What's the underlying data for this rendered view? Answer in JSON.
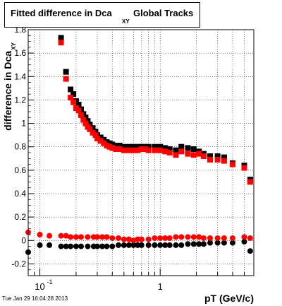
{
  "title": {
    "main": "Fitted difference in Dca",
    "subscript": "XY",
    "rest": "Global Tracks"
  },
  "timestamp": "Tue Jan 29 16:04:28 2013",
  "colors": {
    "series_black": "#000000",
    "series_red": "#ff0000",
    "grid": "#000000",
    "frame": "#000000"
  },
  "chart_data": {
    "type": "scatter",
    "xlabel": "pT (GeV/c)",
    "ylabel": "difference in Dca",
    "ylabel_subscript": "XY",
    "xscale": "log",
    "xlim": [
      0.08,
      6.0
    ],
    "ylim": [
      -0.3,
      1.8
    ],
    "grid": true,
    "y_ticks": [
      {
        "v": -0.2,
        "label": "-0.2"
      },
      {
        "v": 0,
        "label": "0"
      },
      {
        "v": 0.2,
        "label": "0.2"
      },
      {
        "v": 0.4,
        "label": "0.4"
      },
      {
        "v": 0.6,
        "label": "0.6"
      },
      {
        "v": 0.8,
        "label": "0.8"
      },
      {
        "v": 1.0,
        "label": "1"
      },
      {
        "v": 1.2,
        "label": "1.2"
      },
      {
        "v": 1.4,
        "label": "1.4"
      },
      {
        "v": 1.6,
        "label": "1.6"
      },
      {
        "v": 1.8,
        "label": "1.8"
      }
    ],
    "x_major_ticks": [
      {
        "v": 0.1,
        "label": "10",
        "exp": "-1"
      },
      {
        "v": 1.0,
        "label": "1",
        "exp": ""
      }
    ],
    "series": [
      {
        "marker": "square",
        "color": "#000000",
        "points": [
          [
            0.15,
            1.73
          ],
          [
            0.165,
            1.44
          ],
          [
            0.18,
            1.29
          ],
          [
            0.19,
            1.25
          ],
          [
            0.2,
            1.19
          ],
          [
            0.21,
            1.16
          ],
          [
            0.22,
            1.12
          ],
          [
            0.23,
            1.08
          ],
          [
            0.24,
            1.05
          ],
          [
            0.25,
            1.02
          ],
          [
            0.26,
            0.99
          ],
          [
            0.275,
            0.96
          ],
          [
            0.29,
            0.93
          ],
          [
            0.3,
            0.9
          ],
          [
            0.32,
            0.88
          ],
          [
            0.34,
            0.86
          ],
          [
            0.36,
            0.84
          ],
          [
            0.38,
            0.83
          ],
          [
            0.4,
            0.82
          ],
          [
            0.43,
            0.81
          ],
          [
            0.46,
            0.81
          ],
          [
            0.5,
            0.8
          ],
          [
            0.55,
            0.8
          ],
          [
            0.6,
            0.8
          ],
          [
            0.65,
            0.8
          ],
          [
            0.7,
            0.8
          ],
          [
            0.75,
            0.8
          ],
          [
            0.8,
            0.8
          ],
          [
            0.9,
            0.8
          ],
          [
            1.0,
            0.8
          ],
          [
            1.1,
            0.79
          ],
          [
            1.2,
            0.78
          ],
          [
            1.35,
            0.77
          ],
          [
            1.5,
            0.8
          ],
          [
            1.7,
            0.79
          ],
          [
            1.9,
            0.78
          ],
          [
            2.1,
            0.76
          ],
          [
            2.3,
            0.74
          ],
          [
            2.6,
            0.72
          ],
          [
            3.0,
            0.72
          ],
          [
            3.4,
            0.71
          ],
          [
            4.0,
            0.66
          ],
          [
            5.0,
            0.64
          ],
          [
            5.6,
            0.52
          ]
        ]
      },
      {
        "marker": "square",
        "color": "#ff0000",
        "points": [
          [
            0.15,
            1.69
          ],
          [
            0.165,
            1.38
          ],
          [
            0.18,
            1.22
          ],
          [
            0.19,
            1.18
          ],
          [
            0.2,
            1.13
          ],
          [
            0.21,
            1.11
          ],
          [
            0.22,
            1.07
          ],
          [
            0.23,
            1.03
          ],
          [
            0.24,
            1.0
          ],
          [
            0.25,
            0.97
          ],
          [
            0.26,
            0.95
          ],
          [
            0.275,
            0.92
          ],
          [
            0.29,
            0.9
          ],
          [
            0.3,
            0.87
          ],
          [
            0.32,
            0.85
          ],
          [
            0.34,
            0.83
          ],
          [
            0.36,
            0.81
          ],
          [
            0.38,
            0.8
          ],
          [
            0.4,
            0.79
          ],
          [
            0.43,
            0.78
          ],
          [
            0.46,
            0.78
          ],
          [
            0.5,
            0.77
          ],
          [
            0.55,
            0.77
          ],
          [
            0.6,
            0.77
          ],
          [
            0.65,
            0.77
          ],
          [
            0.7,
            0.78
          ],
          [
            0.75,
            0.78
          ],
          [
            0.8,
            0.77
          ],
          [
            0.9,
            0.77
          ],
          [
            1.0,
            0.77
          ],
          [
            1.1,
            0.76
          ],
          [
            1.2,
            0.75
          ],
          [
            1.35,
            0.73
          ],
          [
            1.5,
            0.76
          ],
          [
            1.7,
            0.74
          ],
          [
            1.9,
            0.73
          ],
          [
            2.1,
            0.74
          ],
          [
            2.3,
            0.72
          ],
          [
            2.6,
            0.69
          ],
          [
            3.0,
            0.69
          ],
          [
            3.4,
            0.68
          ],
          [
            4.0,
            0.65
          ],
          [
            5.0,
            0.62
          ],
          [
            5.6,
            0.5
          ]
        ]
      },
      {
        "marker": "circle",
        "color": "#000000",
        "points": [
          [
            0.08,
            -0.1
          ],
          [
            0.1,
            -0.04
          ],
          [
            0.12,
            -0.04
          ],
          [
            0.15,
            -0.05
          ],
          [
            0.165,
            -0.05
          ],
          [
            0.18,
            -0.05
          ],
          [
            0.2,
            -0.05
          ],
          [
            0.22,
            -0.05
          ],
          [
            0.25,
            -0.05
          ],
          [
            0.28,
            -0.05
          ],
          [
            0.3,
            -0.05
          ],
          [
            0.33,
            -0.05
          ],
          [
            0.36,
            -0.05
          ],
          [
            0.4,
            -0.05
          ],
          [
            0.45,
            -0.04
          ],
          [
            0.5,
            -0.04
          ],
          [
            0.55,
            -0.04
          ],
          [
            0.6,
            -0.04
          ],
          [
            0.65,
            -0.04
          ],
          [
            0.7,
            -0.04
          ],
          [
            0.8,
            -0.04
          ],
          [
            0.9,
            -0.04
          ],
          [
            1.0,
            -0.04
          ],
          [
            1.1,
            -0.04
          ],
          [
            1.2,
            -0.04
          ],
          [
            1.35,
            -0.04
          ],
          [
            1.5,
            -0.04
          ],
          [
            1.7,
            -0.03
          ],
          [
            1.9,
            -0.03
          ],
          [
            2.1,
            -0.03
          ],
          [
            2.3,
            -0.03
          ],
          [
            2.6,
            -0.02
          ],
          [
            3.0,
            -0.02
          ],
          [
            3.4,
            -0.02
          ],
          [
            4.0,
            -0.02
          ],
          [
            5.0,
            -0.01
          ],
          [
            5.6,
            -0.09
          ]
        ]
      },
      {
        "marker": "circle",
        "color": "#ff0000",
        "points": [
          [
            0.08,
            0.07
          ],
          [
            0.1,
            0.05
          ],
          [
            0.12,
            0.04
          ],
          [
            0.15,
            0.04
          ],
          [
            0.165,
            0.04
          ],
          [
            0.18,
            0.03
          ],
          [
            0.2,
            0.03
          ],
          [
            0.22,
            0.03
          ],
          [
            0.25,
            0.03
          ],
          [
            0.28,
            0.03
          ],
          [
            0.3,
            0.03
          ],
          [
            0.33,
            0.03
          ],
          [
            0.36,
            0.03
          ],
          [
            0.4,
            0.02
          ],
          [
            0.45,
            0.02
          ],
          [
            0.5,
            0.01
          ],
          [
            0.55,
            0.01
          ],
          [
            0.6,
            0.0
          ],
          [
            0.65,
            0.01
          ],
          [
            0.7,
            0.01
          ],
          [
            0.8,
            0.01
          ],
          [
            0.9,
            0.02
          ],
          [
            1.0,
            0.02
          ],
          [
            1.1,
            0.02
          ],
          [
            1.2,
            0.02
          ],
          [
            1.35,
            0.03
          ],
          [
            1.5,
            0.03
          ],
          [
            1.7,
            0.03
          ],
          [
            1.9,
            0.03
          ],
          [
            2.1,
            0.03
          ],
          [
            2.3,
            0.02
          ],
          [
            2.6,
            0.02
          ],
          [
            3.0,
            0.02
          ],
          [
            3.4,
            0.02
          ],
          [
            4.0,
            0.02
          ],
          [
            5.0,
            0.03
          ],
          [
            5.6,
            0.02
          ]
        ]
      }
    ]
  }
}
